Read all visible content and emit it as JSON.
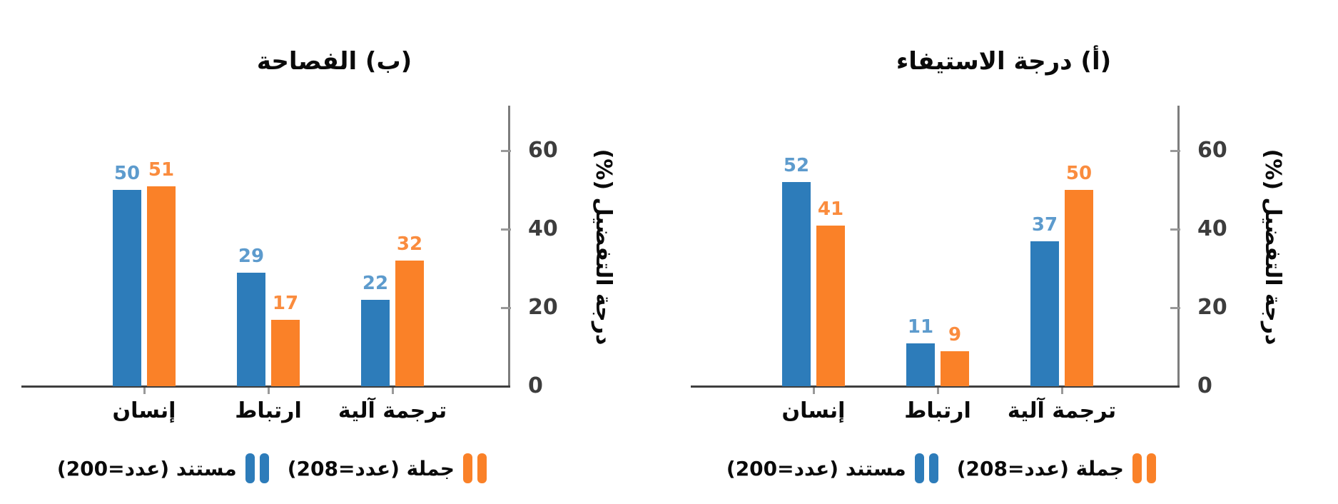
{
  "style": {
    "background": "#ffffff",
    "text": "#0a0a0a",
    "series_blue": "#2d7cba",
    "series_orange": "#fa8128",
    "label_blue": "#5d9bcd",
    "label_orange": "#fa8c3e",
    "axis": "#7d7d7d",
    "baseline": "#3f3f3f",
    "tick": "#999999",
    "tick_text": "#3d3d3d"
  },
  "chart_data": [
    {
      "type": "bar",
      "title": "(أ) درجة الاستيفاء",
      "ylabel": "درجة التفضيل (%)",
      "xlabel": "",
      "yticks": [
        0,
        20,
        40,
        60
      ],
      "ylim": [
        0,
        70
      ],
      "grid": false,
      "axis_side": "right",
      "legend_position": "bottom",
      "categories": [
        "إنسان",
        "ارتباط",
        "ترجمة آلية"
      ],
      "series": [
        {
          "name": "مستند (عدد=200)",
          "color": "#2d7cba",
          "values": [
            52,
            11,
            37
          ]
        },
        {
          "name": "جملة (عدد=208)",
          "color": "#fa8128",
          "values": [
            41,
            9,
            50
          ]
        }
      ]
    },
    {
      "type": "bar",
      "title": "(ب) الفصاحة",
      "ylabel": "درجة التفضيل (%)",
      "xlabel": "",
      "yticks": [
        0,
        20,
        40,
        60
      ],
      "ylim": [
        0,
        70
      ],
      "grid": false,
      "axis_side": "right",
      "legend_position": "bottom",
      "categories": [
        "إنسان",
        "ارتباط",
        "ترجمة آلية"
      ],
      "series": [
        {
          "name": "مستند (عدد=200)",
          "color": "#2d7cba",
          "values": [
            50,
            29,
            22
          ]
        },
        {
          "name": "جملة (عدد=208)",
          "color": "#fa8128",
          "values": [
            51,
            17,
            32
          ]
        }
      ]
    }
  ],
  "legend": {
    "items": [
      {
        "label": "جملة (عدد=208)",
        "series": "sentence",
        "color": "#fa8128"
      },
      {
        "label": "مستند (عدد=200)",
        "series": "document",
        "color": "#2d7cba"
      }
    ]
  }
}
